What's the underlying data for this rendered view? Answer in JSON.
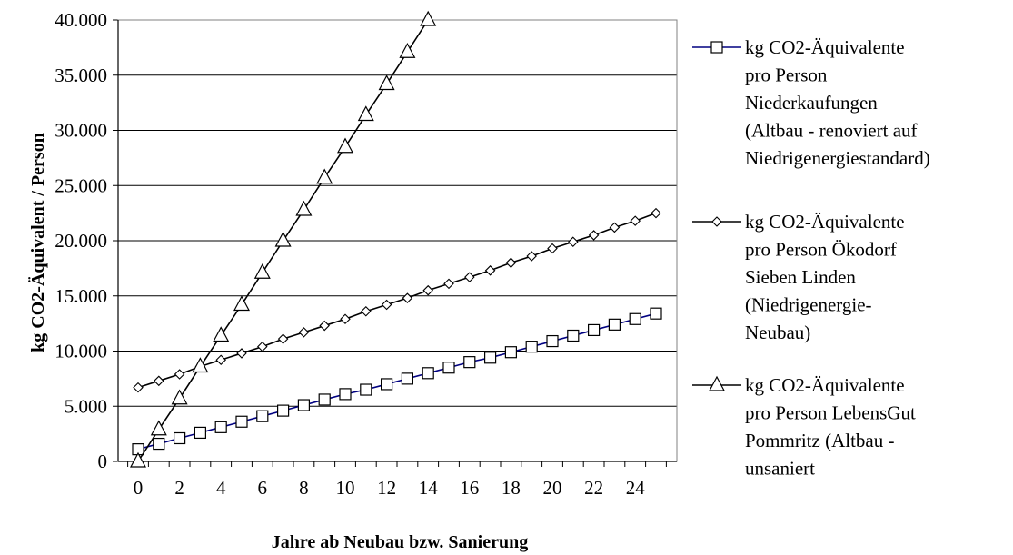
{
  "chart_data": {
    "type": "line",
    "title": "",
    "xlabel": "Jahre ab Neubau bzw. Sanierung",
    "ylabel": "kg CO2-Äquivalent / Person",
    "xlim": [
      0,
      25
    ],
    "ylim": [
      0,
      40000
    ],
    "x_ticks": [
      "0",
      "2",
      "4",
      "6",
      "8",
      "10",
      "12",
      "14",
      "16",
      "18",
      "20",
      "22",
      "24"
    ],
    "y_ticks": [
      "0",
      "5.000",
      "10.000",
      "15.000",
      "20.000",
      "25.000",
      "30.000",
      "35.000",
      "40.000"
    ],
    "grid": "horizontal",
    "legend_position": "right",
    "series": [
      {
        "name": "kg CO2-Äquivalente pro Person Niederkaufungen (Altbau - renoviert auf Niedrigenergiestandard)",
        "legend_lines": [
          "kg CO2-Äquivalente",
          "pro Person",
          "Niederkaufungen",
          "(Altbau - renoviert auf",
          "Niedrigenergiestandard)"
        ],
        "marker": "square",
        "color": "#000080",
        "x": [
          0,
          1,
          2,
          3,
          4,
          5,
          6,
          7,
          8,
          9,
          10,
          11,
          12,
          13,
          14,
          15,
          16,
          17,
          18,
          19,
          20,
          21,
          22,
          23,
          24,
          25
        ],
        "values": [
          1100,
          1600,
          2100,
          2600,
          3100,
          3600,
          4100,
          4600,
          5100,
          5600,
          6100,
          6500,
          7000,
          7500,
          8000,
          8500,
          9000,
          9400,
          9900,
          10400,
          10900,
          11400,
          11900,
          12400,
          12900,
          13400
        ]
      },
      {
        "name": "kg CO2-Äquivalente pro Person Ökodorf Sieben Linden (Niedrigenergie-Neubau)",
        "legend_lines": [
          "kg CO2-Äquivalente",
          "pro Person Ökodorf",
          "Sieben Linden",
          "(Niedrigenergie-",
          "Neubau)"
        ],
        "marker": "diamond",
        "color": "#000000",
        "x": [
          0,
          1,
          2,
          3,
          4,
          5,
          6,
          7,
          8,
          9,
          10,
          11,
          12,
          13,
          14,
          15,
          16,
          17,
          18,
          19,
          20,
          21,
          22,
          23,
          24,
          25
        ],
        "values": [
          6700,
          7300,
          7900,
          8600,
          9200,
          9800,
          10400,
          11100,
          11700,
          12300,
          12900,
          13600,
          14200,
          14800,
          15500,
          16100,
          16700,
          17300,
          18000,
          18600,
          19300,
          19900,
          20500,
          21200,
          21800,
          22500
        ]
      },
      {
        "name": "kg CO2-Äquivalente pro Person LebensGut Pommritz (Altbau - unsaniert",
        "legend_lines": [
          "kg CO2-Äquivalente",
          "pro Person LebensGut",
          "Pommritz (Altbau -",
          "unsaniert"
        ],
        "marker": "triangle",
        "color": "#000000",
        "x": [
          0,
          1,
          2,
          3,
          4,
          5,
          6,
          7,
          8,
          9,
          10,
          11,
          12,
          13,
          14
        ],
        "values": [
          0,
          2900,
          5700,
          8600,
          11400,
          14200,
          17100,
          20000,
          22800,
          25700,
          28500,
          31400,
          34200,
          37100,
          40000
        ]
      }
    ]
  }
}
